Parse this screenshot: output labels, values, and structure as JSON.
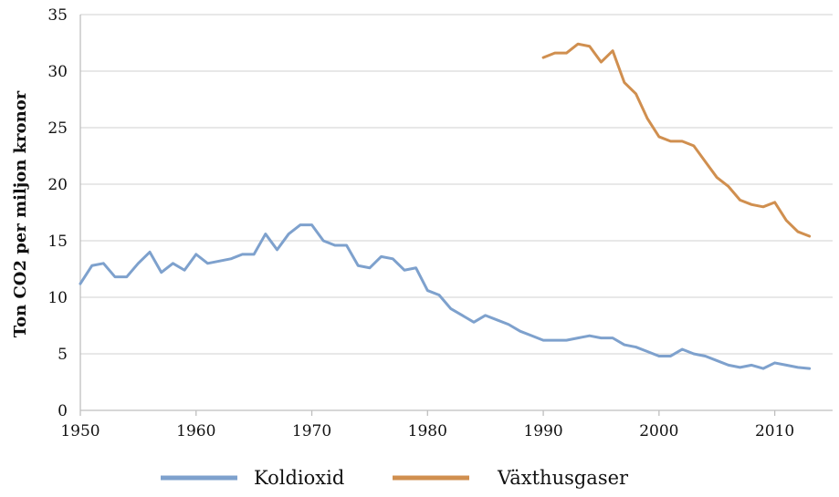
{
  "chart_data": {
    "type": "line",
    "title": "",
    "xlabel": "",
    "ylabel": "Ton CO2 per miljon kronor",
    "xlim": [
      1950,
      2015
    ],
    "ylim": [
      0,
      35
    ],
    "x_ticks": [
      1950,
      1960,
      1970,
      1980,
      1990,
      2000,
      2010
    ],
    "y_ticks": [
      0,
      5,
      10,
      15,
      20,
      25,
      30,
      35
    ],
    "grid": "horizontal",
    "legend": "bottom",
    "series": [
      {
        "name": "Koldioxid",
        "color": "#7ea1cd",
        "x": [
          1950,
          1951,
          1952,
          1953,
          1954,
          1955,
          1956,
          1957,
          1958,
          1959,
          1960,
          1961,
          1962,
          1963,
          1964,
          1965,
          1966,
          1967,
          1968,
          1969,
          1970,
          1971,
          1972,
          1973,
          1974,
          1975,
          1976,
          1977,
          1978,
          1979,
          1980,
          1981,
          1982,
          1983,
          1984,
          1985,
          1986,
          1987,
          1988,
          1989,
          1990,
          1991,
          1992,
          1993,
          1994,
          1995,
          1996,
          1997,
          1998,
          1999,
          2000,
          2001,
          2002,
          2003,
          2004,
          2005,
          2006,
          2007,
          2008,
          2009,
          2010,
          2011,
          2012,
          2013
        ],
        "y": [
          11.2,
          12.8,
          13.0,
          11.8,
          11.8,
          13.0,
          14.0,
          12.2,
          13.0,
          12.4,
          13.8,
          13.0,
          13.2,
          13.4,
          13.8,
          13.8,
          15.6,
          14.2,
          15.6,
          16.4,
          16.4,
          15.0,
          14.6,
          14.6,
          12.8,
          12.6,
          13.6,
          13.4,
          12.4,
          12.6,
          10.6,
          10.2,
          9.0,
          8.4,
          7.8,
          8.4,
          8.0,
          7.6,
          7.0,
          6.6,
          6.2,
          6.2,
          6.2,
          6.4,
          6.6,
          6.4,
          6.4,
          5.8,
          5.6,
          5.2,
          4.8,
          4.8,
          5.4,
          5.0,
          4.8,
          4.4,
          4.0,
          3.8,
          4.0,
          3.7,
          4.2,
          4.0,
          3.8,
          3.7
        ]
      },
      {
        "name": "Växthusgaser",
        "color": "#d08f4f",
        "x": [
          1990,
          1991,
          1992,
          1993,
          1994,
          1995,
          1996,
          1997,
          1998,
          1999,
          2000,
          2001,
          2002,
          2003,
          2004,
          2005,
          2006,
          2007,
          2008,
          2009,
          2010,
          2011,
          2012,
          2013
        ],
        "y": [
          31.2,
          31.6,
          31.6,
          32.4,
          32.2,
          30.8,
          31.8,
          29.0,
          28.0,
          25.8,
          24.2,
          23.8,
          23.8,
          23.4,
          22.0,
          20.6,
          19.8,
          18.6,
          18.2,
          18.0,
          18.4,
          16.8,
          15.8,
          15.4
        ]
      }
    ]
  }
}
